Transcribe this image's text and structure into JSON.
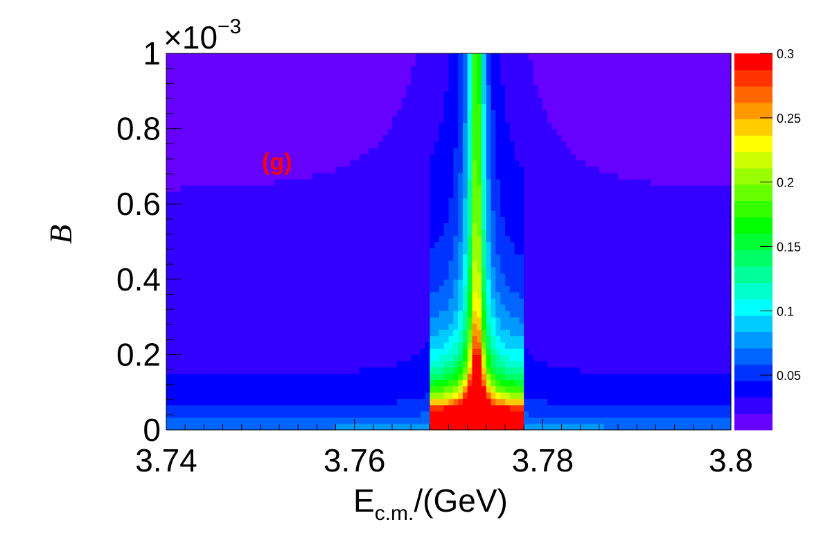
{
  "chart_data": {
    "type": "heatmap",
    "panel_label": "(g)",
    "panel_label_color": "#ff0000",
    "xlabel_main": "E",
    "xlabel_sub": "c.m.",
    "xlabel_tail": "/(GeV)",
    "ylabel": "B",
    "y_multiplier_base": "×10",
    "y_multiplier_exp": "−3",
    "xlim": [
      3.74,
      3.8
    ],
    "ylim": [
      0,
      0.001
    ],
    "zlim": [
      0.0075,
      0.3
    ],
    "x_ticks": [
      {
        "value": 3.74,
        "label": "3.74"
      },
      {
        "value": 3.76,
        "label": "3.76"
      },
      {
        "value": 3.78,
        "label": "3.78"
      },
      {
        "value": 3.8,
        "label": "3.8"
      }
    ],
    "y_ticks": [
      {
        "value": 0,
        "label": "0"
      },
      {
        "value": 0.0002,
        "label": "0.2"
      },
      {
        "value": 0.0004,
        "label": "0.4"
      },
      {
        "value": 0.0006,
        "label": "0.6"
      },
      {
        "value": 0.0008,
        "label": "0.8"
      },
      {
        "value": 0.001,
        "label": "1"
      }
    ],
    "z_ticks": [
      {
        "value": 0.05,
        "label": "0.05"
      },
      {
        "value": 0.1,
        "label": "0.1"
      },
      {
        "value": 0.15,
        "label": "0.15"
      },
      {
        "value": 0.2,
        "label": "0.2"
      },
      {
        "value": 0.25,
        "label": "0.25"
      },
      {
        "value": 0.3,
        "label": "0.3"
      }
    ],
    "contour_levels": 20,
    "peak": {
      "center": 3.773,
      "width": 0.0001
    },
    "palette": [
      "#6600ff",
      "#3300ff",
      "#0000ff",
      "#0033ff",
      "#0066ff",
      "#0099ff",
      "#00ccff",
      "#00ffff",
      "#00ffcc",
      "#00ff99",
      "#00ff66",
      "#00ff33",
      "#00ff00",
      "#33ff00",
      "#66ff00",
      "#99ff00",
      "#ccff00",
      "#ffff00",
      "#ffcc00",
      "#ff9900",
      "#ff6600",
      "#ff3300",
      "#ff0000"
    ],
    "grid": false
  }
}
